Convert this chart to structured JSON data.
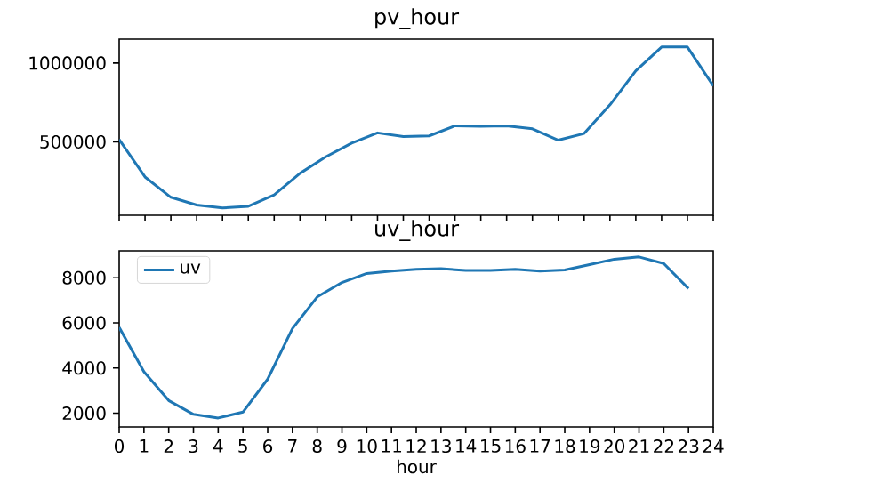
{
  "chart_data": [
    {
      "type": "line",
      "title": "pv_hour",
      "categories": [
        null,
        null,
        null,
        null,
        null,
        null,
        null,
        null,
        null,
        null,
        null,
        null,
        null,
        null,
        null,
        null,
        null,
        null,
        null,
        null,
        null,
        null,
        null,
        null
      ],
      "series": [
        {
          "color": "#1f77b4",
          "values": [
            515000,
            277000,
            148000,
            99000,
            80000,
            91000,
            163000,
            300000,
            405000,
            492000,
            557000,
            534000,
            538000,
            602000,
            598000,
            602000,
            583000,
            511000,
            553000,
            735000,
            951000,
            1102000,
            1102000,
            856000
          ]
        }
      ],
      "ylim": [
        34000,
        1152000
      ],
      "yticks": [
        500000,
        1000000
      ],
      "tick_labels": "y"
    },
    {
      "type": "line",
      "title": "uv_hour",
      "xlabel": "hour",
      "x": [
        0,
        1,
        2,
        3,
        4,
        5,
        6,
        7,
        8,
        9,
        10,
        11,
        12,
        13,
        14,
        15,
        16,
        17,
        18,
        19,
        20,
        21,
        22,
        23
      ],
      "series": [
        {
          "name": "uv",
          "color": "#1f77b4",
          "values": [
            5800,
            3830,
            2560,
            1950,
            1790,
            2050,
            3510,
            5750,
            7150,
            7790,
            8190,
            8290,
            8370,
            8400,
            8320,
            8320,
            8370,
            8290,
            8340,
            8580,
            8820,
            8920,
            8630,
            7520
          ]
        }
      ],
      "xlim": [
        0,
        24
      ],
      "ylim": [
        1392,
        9190
      ],
      "yticks": [
        2000,
        4000,
        6000,
        8000
      ],
      "xticks": [
        0,
        1,
        2,
        3,
        4,
        5,
        6,
        7,
        8,
        9,
        10,
        11,
        12,
        13,
        14,
        15,
        16,
        17,
        18,
        19,
        20,
        21,
        22,
        23,
        24
      ],
      "legend": "top left"
    }
  ]
}
